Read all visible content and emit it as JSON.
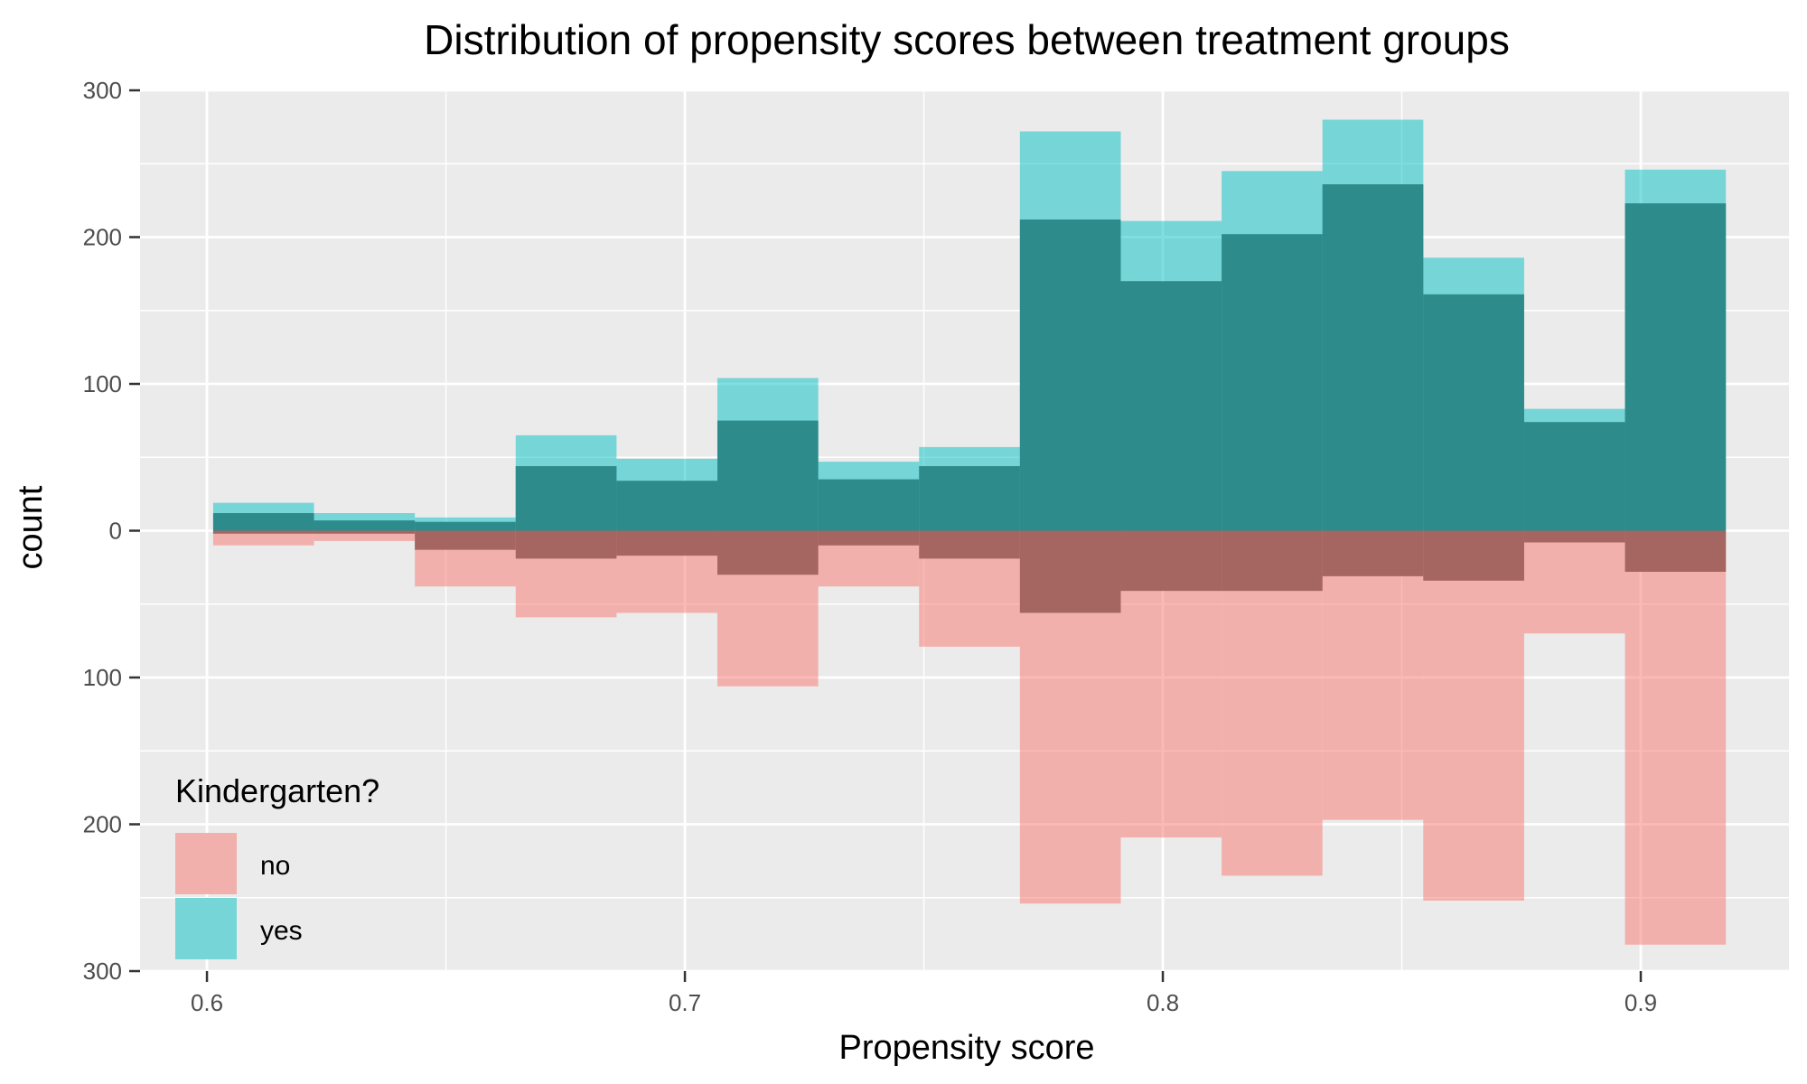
{
  "chart_data": {
    "type": "bar",
    "title": "Distribution of propensity scores between treatment groups",
    "xlabel": "Propensity score",
    "ylabel": "count",
    "xlim": [
      0.586,
      0.931
    ],
    "ylim": [
      -300,
      300
    ],
    "x_ticks": [
      0.6,
      0.7,
      0.8,
      0.9
    ],
    "x_tick_labels": [
      "0.6",
      "0.7",
      "0.8",
      "0.9"
    ],
    "y_ticks": [
      -300,
      -200,
      -100,
      0,
      100,
      200,
      300
    ],
    "y_tick_labels": [
      "300",
      "200",
      "100",
      "0",
      "100",
      "200",
      "300"
    ],
    "grid": true,
    "bins": [
      [
        0.6013,
        0.6224
      ],
      [
        0.6224,
        0.6435
      ],
      [
        0.6435,
        0.6646
      ],
      [
        0.6646,
        0.6857
      ],
      [
        0.6857,
        0.7068
      ],
      [
        0.7068,
        0.7279
      ],
      [
        0.7279,
        0.749
      ],
      [
        0.749,
        0.7701
      ],
      [
        0.7701,
        0.7912
      ],
      [
        0.7912,
        0.8123
      ],
      [
        0.8123,
        0.8334
      ],
      [
        0.8334,
        0.8545
      ],
      [
        0.8545,
        0.8756
      ],
      [
        0.8756,
        0.8967
      ],
      [
        0.8967,
        0.9178
      ]
    ],
    "series": [
      {
        "name": "yes",
        "color": "#00BFC4",
        "direction": "up",
        "layers": [
          {
            "opacity": 0.5,
            "values": [
              19,
              12,
              9,
              65,
              49,
              104,
              47,
              57,
              272,
              211,
              245,
              280,
              186,
              83,
              246
            ]
          },
          {
            "opacity": 0.5,
            "values": [
              12,
              7,
              6,
              44,
              34,
              75,
              35,
              44,
              212,
              170,
              202,
              236,
              161,
              74,
              223
            ]
          }
        ]
      },
      {
        "name": "no",
        "color": "#F8766D",
        "direction": "down",
        "layers": [
          {
            "opacity": 0.5,
            "values": [
              10,
              7,
              38,
              59,
              56,
              106,
              38,
              79,
              254,
              209,
              235,
              197,
              252,
              70,
              282
            ]
          },
          {
            "opacity": 0.5,
            "values": [
              2,
              2,
              13,
              19,
              17,
              30,
              10,
              19,
              56,
              41,
              41,
              31,
              34,
              8,
              28
            ]
          }
        ]
      }
    ],
    "overlap_fill": "#2e8b8b",
    "overlap_fill_down": "#a56661",
    "legend": {
      "title": "Kindergarten?",
      "placement": "bottom-left-inside",
      "items": [
        {
          "label": "no",
          "color": "#F8766D"
        },
        {
          "label": "yes",
          "color": "#00BFC4"
        }
      ]
    }
  }
}
